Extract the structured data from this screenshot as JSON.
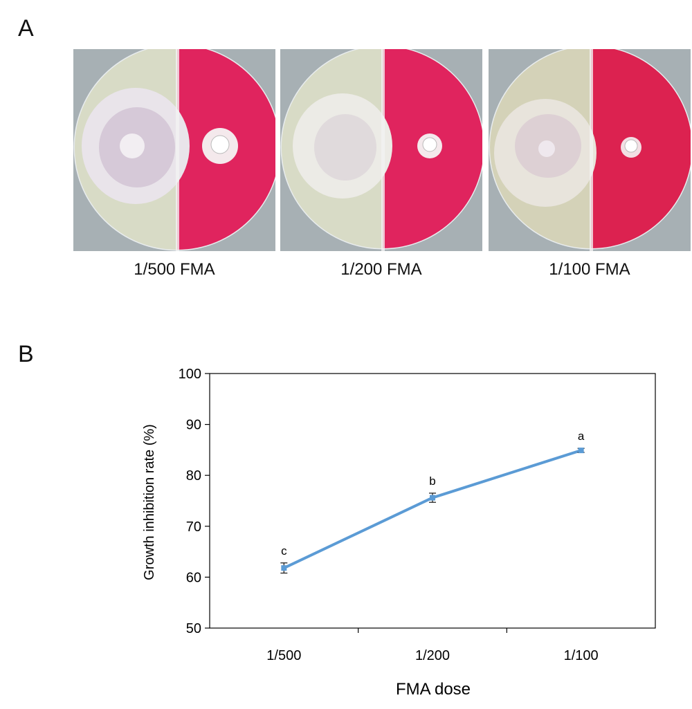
{
  "panel_a": {
    "label": "A",
    "plates": [
      {
        "caption": "1/500 FMA"
      },
      {
        "caption": "1/200 FMA"
      },
      {
        "caption": "1/100 FMA"
      }
    ]
  },
  "panel_b": {
    "label": "B"
  },
  "colors": {
    "line": "#5b9bd5",
    "medium_clear": "#d9dcc8",
    "medium_red": "#e0245e",
    "background": "#a7b0b4"
  },
  "chart_data": {
    "type": "line",
    "xlabel": "FMA dose",
    "ylabel": "Growth inhibition rate (%)",
    "categories": [
      "1/500",
      "1/200",
      "1/100"
    ],
    "series": [
      {
        "values": [
          61.8,
          75.6,
          84.9
        ],
        "errors": [
          1.0,
          0.9,
          0.4
        ],
        "letters": [
          "c",
          "b",
          "a"
        ]
      }
    ],
    "ylim": [
      50,
      100
    ],
    "yticks": [
      50,
      60,
      70,
      80,
      90,
      100
    ],
    "grid": false
  }
}
